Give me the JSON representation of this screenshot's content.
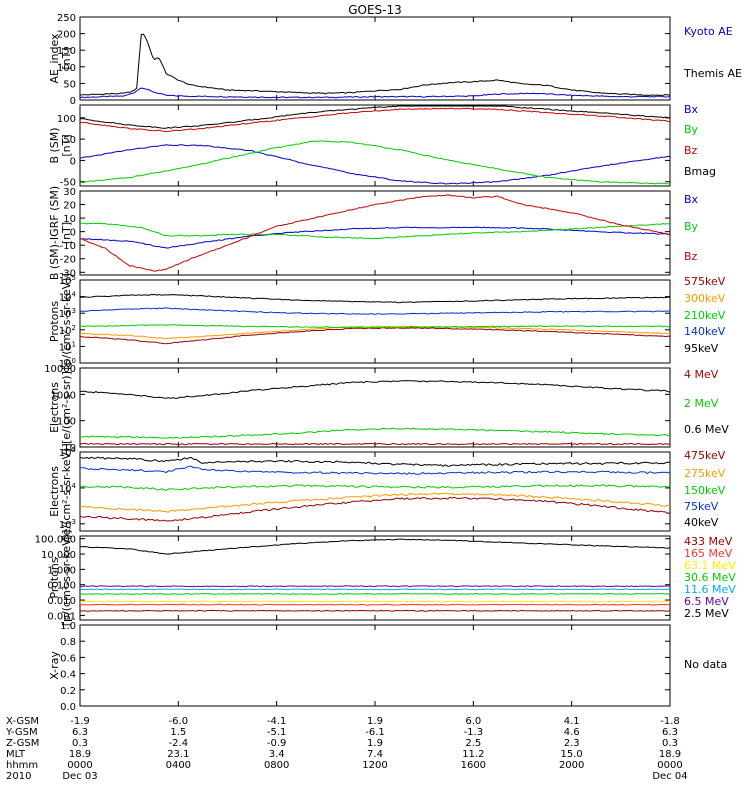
{
  "title": "GOES-13",
  "chart_data": [
    {
      "type": "line",
      "ylabel": [
        "AE_index",
        "[nT]"
      ],
      "ylim": [
        0,
        250
      ],
      "yticks": [
        "0",
        "50",
        "100",
        "150",
        "200",
        "250"
      ],
      "series": [
        {
          "name": "Kyoto AE",
          "color": "#0000cc",
          "x": [
            0,
            1.0,
            1.8,
            2.2,
            2.5,
            3.0,
            3.5,
            4.0,
            6.0,
            8.0,
            10.0,
            12.0,
            14.0,
            16.0,
            17.0,
            18.5,
            20.0,
            22.0,
            24.0
          ],
          "values": [
            8,
            10,
            12,
            22,
            38,
            24,
            14,
            12,
            10,
            8,
            8,
            10,
            10,
            12,
            18,
            20,
            14,
            10,
            10
          ]
        },
        {
          "name": "Themis AE",
          "color": "#000000",
          "x": [
            0,
            1.0,
            1.8,
            2.3,
            2.5,
            2.7,
            3.0,
            3.2,
            3.5,
            4.0,
            4.5,
            5.0,
            6.0,
            7.0,
            8.0,
            9.0,
            10.0,
            11.0,
            12.0,
            13.0,
            14.0,
            15.0,
            16.0,
            17.0,
            18.0,
            19.0,
            20.0,
            21.0,
            22.0,
            23.0,
            24.0
          ],
          "values": [
            15,
            18,
            20,
            30,
            205,
            185,
            120,
            130,
            80,
            60,
            45,
            40,
            30,
            28,
            25,
            22,
            20,
            22,
            28,
            32,
            45,
            52,
            55,
            60,
            48,
            44,
            30,
            22,
            18,
            15,
            15
          ]
        }
      ]
    },
    {
      "type": "line",
      "ylabel": [
        "B (SM)",
        "[nT]"
      ],
      "ylim": [
        -60,
        130
      ],
      "yticks": [
        "-50",
        "0",
        "50",
        "100"
      ],
      "series": [
        {
          "name": "Bx",
          "color": "#0000cc",
          "x": [
            0,
            2,
            3.5,
            5,
            7,
            9,
            11,
            13,
            15,
            17,
            19,
            21,
            24
          ],
          "values": [
            5,
            25,
            36,
            35,
            22,
            -5,
            -30,
            -48,
            -55,
            -50,
            -35,
            -15,
            10
          ]
        },
        {
          "name": "By",
          "color": "#00cc00",
          "x": [
            0,
            2,
            4,
            6,
            8,
            9.5,
            11,
            13,
            15,
            17,
            19,
            21,
            24
          ],
          "values": [
            -52,
            -40,
            -20,
            5,
            30,
            45,
            43,
            25,
            0,
            -20,
            -40,
            -50,
            -55
          ]
        },
        {
          "name": "Bz",
          "color": "#cc0000",
          "x": [
            0,
            2,
            3.5,
            5,
            7,
            9,
            11,
            13,
            15,
            17,
            19,
            21,
            24
          ],
          "values": [
            90,
            75,
            68,
            75,
            88,
            100,
            112,
            120,
            122,
            120,
            112,
            105,
            92
          ]
        },
        {
          "name": "Bmag",
          "color": "#000000",
          "x": [
            0,
            2,
            3.5,
            5,
            7,
            9,
            11,
            13,
            15,
            17,
            19,
            21,
            24
          ],
          "values": [
            98,
            83,
            76,
            82,
            95,
            110,
            120,
            128,
            130,
            128,
            120,
            112,
            100
          ]
        }
      ]
    },
    {
      "type": "line",
      "ylabel": [
        "B (SM)-IGRF (SM)",
        "[nT]"
      ],
      "ylim": [
        -32,
        30
      ],
      "yticks": [
        "-30",
        "-20",
        "-10",
        "0",
        "10",
        "20",
        "30"
      ],
      "series": [
        {
          "name": "Bx",
          "color": "#0000cc",
          "x": [
            0,
            2,
            3.5,
            5,
            7,
            9,
            11,
            13,
            15,
            17,
            19,
            21,
            24
          ],
          "values": [
            -5,
            -7,
            -12,
            -8,
            -3,
            0,
            2,
            3,
            3,
            3,
            2,
            0,
            -2
          ]
        },
        {
          "name": "By",
          "color": "#00cc00",
          "x": [
            0,
            1,
            2.5,
            3.5,
            5,
            6,
            8,
            10,
            12,
            14,
            16,
            18,
            20,
            22,
            24
          ],
          "values": [
            6,
            6,
            3,
            -3,
            -3,
            -2,
            -2,
            -4,
            -5,
            -3,
            -1,
            0,
            2,
            4,
            6
          ]
        },
        {
          "name": "Bz",
          "color": "#cc0000",
          "x": [
            0,
            1,
            2,
            3,
            3.5,
            4.5,
            6,
            7,
            8,
            9,
            10,
            12,
            14,
            15,
            16,
            17,
            18,
            20,
            22,
            24
          ],
          "values": [
            -5,
            -12,
            -25,
            -29,
            -28,
            -20,
            -10,
            -3,
            4,
            8,
            12,
            20,
            26,
            27,
            25,
            26,
            20,
            14,
            5,
            -2
          ]
        }
      ]
    },
    {
      "type": "line",
      "log": true,
      "ylabel": [
        "Protons",
        "[p/(cm²-s-sr-keV)]"
      ],
      "ylim_exp": [
        0,
        5
      ],
      "yticks_exp": [
        0,
        1,
        2,
        3,
        4,
        5
      ],
      "series": [
        {
          "name": "575keV",
          "color": "#990000",
          "x": [
            0,
            2,
            3.5,
            5,
            7,
            9,
            11,
            13,
            15,
            17,
            19,
            21,
            24
          ],
          "values": [
            40,
            25,
            15,
            25,
            50,
            80,
            120,
            130,
            120,
            100,
            80,
            60,
            40
          ]
        },
        {
          "name": "300keV",
          "color": "#ff9900",
          "x": [
            0,
            2,
            3.5,
            5,
            7,
            9,
            11,
            13,
            15,
            17,
            19,
            21,
            24
          ],
          "values": [
            60,
            45,
            30,
            40,
            65,
            100,
            150,
            160,
            150,
            130,
            110,
            85,
            60
          ]
        },
        {
          "name": "210keV",
          "color": "#00cc00",
          "x": [
            0,
            2,
            3.5,
            5,
            7,
            9,
            11,
            13,
            15,
            17,
            19,
            21,
            24
          ],
          "values": [
            160,
            180,
            200,
            180,
            160,
            150,
            140,
            140,
            150,
            160,
            165,
            165,
            160
          ]
        },
        {
          "name": "140keV",
          "color": "#0033cc",
          "x": [
            0,
            2,
            3.5,
            5,
            7,
            9,
            11,
            13,
            15,
            17,
            19,
            21,
            24
          ],
          "values": [
            1300,
            1800,
            2000,
            1600,
            1200,
            1000,
            900,
            900,
            1000,
            1100,
            1200,
            1250,
            1300
          ]
        },
        {
          "name": "95keV",
          "color": "#000000",
          "x": [
            0,
            2,
            3.5,
            5,
            7,
            9,
            11,
            13,
            15,
            17,
            19,
            21,
            24
          ],
          "values": [
            9000,
            12000,
            13000,
            11000,
            8000,
            6000,
            5000,
            4500,
            5000,
            6000,
            7000,
            8000,
            9000
          ]
        }
      ]
    },
    {
      "type": "line",
      "log": true,
      "ylabel": [
        "Electrons",
        "[e/(cm²-s-sr)]"
      ],
      "ylim": [
        10,
        10000
      ],
      "yticks": [
        "10",
        "100",
        "1000",
        "10000"
      ],
      "series": [
        {
          "name": "4 MeV",
          "color": "#990000",
          "x": [
            0,
            6,
            12,
            18,
            24
          ],
          "values": [
            13,
            13,
            13,
            13,
            13
          ]
        },
        {
          "name": "2 MeV",
          "color": "#00cc00",
          "x": [
            0,
            2,
            3.5,
            5,
            7,
            9,
            11,
            13,
            15,
            17,
            19,
            21,
            24
          ],
          "values": [
            25,
            24,
            22,
            24,
            28,
            35,
            45,
            50,
            48,
            42,
            38,
            32,
            28
          ]
        },
        {
          "name": "0.6 MeV",
          "color": "#000000",
          "x": [
            0,
            2,
            3.5,
            5,
            7,
            9,
            11,
            13,
            15,
            17,
            19,
            21,
            24
          ],
          "values": [
            1300,
            1000,
            700,
            900,
            1400,
            2000,
            2800,
            3200,
            3100,
            2800,
            2300,
            1800,
            1300
          ]
        }
      ]
    },
    {
      "type": "line",
      "log": true,
      "ylabel": [
        "Electrons",
        "[e/(cm²-s-sr-keV)]"
      ],
      "ylim_exp": [
        2.8,
        5
      ],
      "yticks_exp": [
        3,
        4,
        5
      ],
      "series": [
        {
          "name": "475keV",
          "color": "#990000",
          "x": [
            0,
            2,
            3.5,
            5,
            7,
            9,
            11,
            13,
            15,
            17,
            19,
            21,
            24
          ],
          "values": [
            1600,
            1400,
            1200,
            1500,
            2200,
            3000,
            4000,
            5000,
            5200,
            5000,
            4200,
            3200,
            2000
          ]
        },
        {
          "name": "275keV",
          "color": "#ff9900",
          "x": [
            0,
            2,
            3.5,
            5,
            7,
            9,
            11,
            13,
            15,
            17,
            19,
            21,
            24
          ],
          "values": [
            3000,
            2500,
            2200,
            2700,
            3500,
            4500,
            5500,
            6500,
            6800,
            6500,
            5500,
            4500,
            3200
          ]
        },
        {
          "name": "150keV",
          "color": "#00cc00",
          "x": [
            0,
            2,
            3.5,
            5,
            7,
            9,
            11,
            13,
            15,
            17,
            19,
            21,
            24
          ],
          "values": [
            11000,
            10500,
            9000,
            10000,
            11000,
            11500,
            11000,
            10500,
            10500,
            11000,
            11500,
            11500,
            11000
          ]
        },
        {
          "name": "75keV",
          "color": "#0033cc",
          "x": [
            0,
            2,
            3.5,
            4.5,
            5,
            7,
            9,
            11,
            13,
            15,
            17,
            19,
            21,
            24
          ],
          "values": [
            35000,
            32000,
            28000,
            40000,
            32000,
            28000,
            27000,
            26000,
            25000,
            26000,
            27000,
            28000,
            28000,
            26000
          ]
        },
        {
          "name": "40keV",
          "color": "#000000",
          "x": [
            0,
            2,
            3.5,
            4.5,
            5,
            7,
            9,
            11,
            13,
            15,
            17,
            19,
            21,
            24
          ],
          "values": [
            70000,
            65000,
            55000,
            70000,
            50000,
            55000,
            55000,
            52000,
            45000,
            42000,
            45000,
            48000,
            48000,
            50000
          ]
        }
      ]
    },
    {
      "type": "line",
      "log": true,
      "ylabel": [
        "Protons",
        "[p/(cm²-s-sr-keV)]"
      ],
      "ylim": [
        0.0005,
        150
      ],
      "yticks": [
        "0.001",
        "0.010",
        "0.100",
        "1.000",
        "10.000",
        "100.000"
      ],
      "series": [
        {
          "name": "433 MeV",
          "color": "#990000",
          "x": [
            0,
            24
          ],
          "values": [
            0.002,
            0.002
          ]
        },
        {
          "name": "165 MeV",
          "color": "#ff3333",
          "x": [
            0,
            24
          ],
          "values": [
            0.005,
            0.005
          ]
        },
        {
          "name": "63.1 MeV",
          "color": "#ffee00",
          "x": [
            0,
            24
          ],
          "values": [
            0.008,
            0.008
          ]
        },
        {
          "name": "30.6 MeV",
          "color": "#00cc00",
          "x": [
            0,
            24
          ],
          "values": [
            0.025,
            0.025
          ]
        },
        {
          "name": "11.6 MeV",
          "color": "#00aaff",
          "x": [
            0,
            24
          ],
          "values": [
            0.05,
            0.05
          ]
        },
        {
          "name": "6.5 MeV",
          "color": "#6600aa",
          "x": [
            0,
            24
          ],
          "values": [
            0.08,
            0.08
          ]
        },
        {
          "name": "2.5 MeV",
          "color": "#000000",
          "x": [
            0,
            2,
            3.5,
            5,
            7,
            9,
            11,
            13,
            15,
            17,
            19,
            21,
            24
          ],
          "values": [
            30,
            22,
            10,
            16,
            30,
            50,
            75,
            90,
            80,
            60,
            45,
            35,
            25
          ]
        }
      ]
    },
    {
      "type": "line",
      "ylabel": [
        "X-ray",
        ""
      ],
      "ylim": [
        0,
        1
      ],
      "yticks": [
        "0.0",
        "0.2",
        "0.4",
        "0.6",
        "0.8",
        "1.0"
      ],
      "series": [
        {
          "name": "No data",
          "color": "#000000",
          "x": [],
          "values": []
        }
      ]
    }
  ],
  "x_axis": {
    "range_hours": [
      0,
      24
    ],
    "tick_hours": [
      0,
      4,
      8,
      12,
      16,
      20,
      24
    ],
    "rows": [
      {
        "label": "X-GSM",
        "values": [
          "-1.9",
          "-6.0",
          "-4.1",
          "1.9",
          "6.0",
          "4.1",
          "-1.8"
        ]
      },
      {
        "label": "Y-GSM",
        "values": [
          "6.3",
          "1.5",
          "-5.1",
          "-6.1",
          "-1.3",
          "4.6",
          "6.3"
        ]
      },
      {
        "label": "Z-GSM",
        "values": [
          "0.3",
          "-2.4",
          "-0.9",
          "1.9",
          "2.5",
          "2.3",
          "0.3"
        ]
      },
      {
        "label": "MLT",
        "values": [
          "18.9",
          "23.1",
          "3.4",
          "7.4",
          "11.2",
          "15.0",
          "18.9"
        ]
      },
      {
        "label": "hhmm",
        "values": [
          "0000",
          "0400",
          "0800",
          "1200",
          "1600",
          "2000",
          "0000"
        ]
      },
      {
        "label": "2010",
        "values": [
          "Dec 03",
          "",
          "",
          "",
          "",
          "",
          "Dec 04"
        ]
      }
    ]
  }
}
